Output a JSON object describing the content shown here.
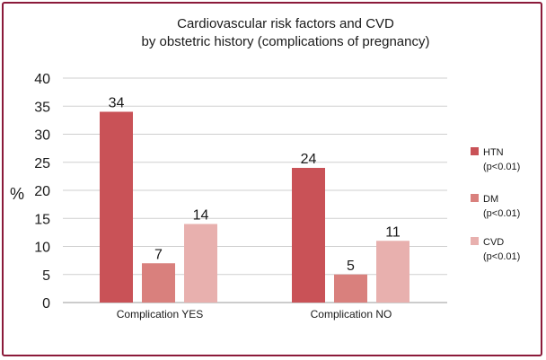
{
  "chart_data": {
    "type": "bar",
    "title_lines": [
      "Cardiovascular risk factors and CVD",
      "by obstetric history (complications of pregnancy)"
    ],
    "ylabel": "%",
    "xlabel": "",
    "ylim": [
      0,
      40
    ],
    "yticks": [
      0,
      5,
      10,
      15,
      20,
      25,
      30,
      35,
      40
    ],
    "grid": true,
    "legend_position": "right",
    "categories": [
      "Complication YES",
      "Complication NO"
    ],
    "series": [
      {
        "name": "HTN",
        "sub": "(p<0.01)",
        "color": "#c95257",
        "values": [
          34,
          24
        ]
      },
      {
        "name": "DM",
        "sub": "(p<0.01)",
        "color": "#d9807d",
        "values": [
          7,
          5
        ]
      },
      {
        "name": "CVD",
        "sub": "(p<0.01)",
        "color": "#e8b0ae",
        "values": [
          14,
          11
        ]
      }
    ]
  }
}
